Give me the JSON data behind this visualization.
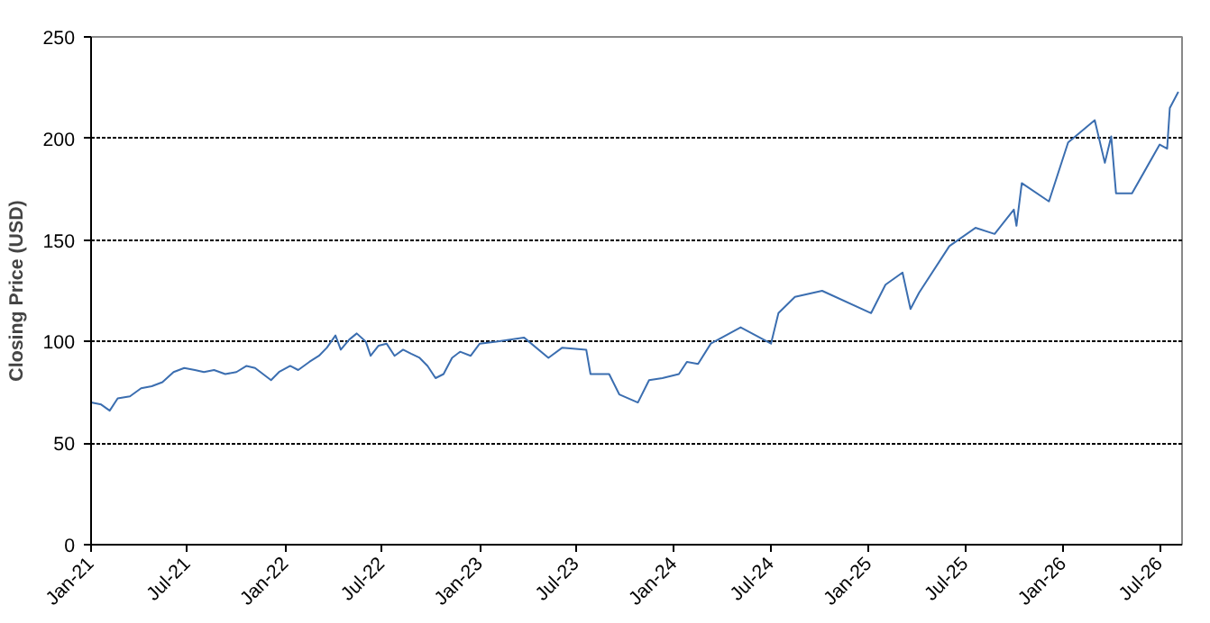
{
  "chart_data": {
    "type": "line",
    "ylabel": "Closing Price (USD)",
    "x": [
      "2021-01-01",
      "2021-01-20",
      "2021-02-05",
      "2021-02-20",
      "2021-03-15",
      "2021-04-05",
      "2021-04-25",
      "2021-05-15",
      "2021-06-05",
      "2021-06-25",
      "2021-07-15",
      "2021-08-01",
      "2021-08-20",
      "2021-09-10",
      "2021-10-01",
      "2021-10-20",
      "2021-11-05",
      "2021-11-25",
      "2021-12-05",
      "2021-12-20",
      "2022-01-10",
      "2022-01-25",
      "2022-02-15",
      "2022-03-05",
      "2022-03-20",
      "2022-04-05",
      "2022-04-15",
      "2022-05-01",
      "2022-05-15",
      "2022-06-01",
      "2022-06-10",
      "2022-06-25",
      "2022-07-10",
      "2022-07-25",
      "2022-08-10",
      "2022-08-25",
      "2022-09-10",
      "2022-09-25",
      "2022-10-10",
      "2022-10-25",
      "2022-11-10",
      "2022-11-25",
      "2022-12-15",
      "2023-01-01",
      "2023-02-01",
      "2023-03-25",
      "2023-05-10",
      "2023-06-05",
      "2023-07-20",
      "2023-07-28",
      "2023-09-01",
      "2023-09-20",
      "2023-10-25",
      "2023-11-15",
      "2023-12-10",
      "2024-01-10",
      "2024-01-25",
      "2024-02-15",
      "2024-03-10",
      "2024-05-05",
      "2024-07-01",
      "2024-07-15",
      "2024-08-15",
      "2024-10-05",
      "2025-01-05",
      "2025-02-01",
      "2025-03-05",
      "2025-03-20",
      "2025-04-05",
      "2025-06-01",
      "2025-07-20",
      "2025-08-25",
      "2025-09-30",
      "2025-10-05",
      "2025-10-15",
      "2025-12-05",
      "2026-01-10",
      "2026-03-01",
      "2026-03-20",
      "2026-04-01",
      "2026-04-10",
      "2026-05-10",
      "2026-07-01",
      "2026-07-15",
      "2026-07-20",
      "2026-08-05"
    ],
    "values": [
      70,
      69,
      66,
      72,
      73,
      77,
      78,
      80,
      85,
      87,
      86,
      85,
      86,
      84,
      85,
      88,
      87,
      83,
      81,
      85,
      88,
      86,
      90,
      93,
      97,
      103,
      96,
      101,
      104,
      100,
      93,
      98,
      99,
      93,
      96,
      94,
      92,
      88,
      82,
      84,
      92,
      95,
      93,
      99,
      100,
      102,
      92,
      97,
      96,
      84,
      84,
      74,
      70,
      81,
      82,
      84,
      90,
      89,
      99,
      107,
      99,
      114,
      122,
      125,
      114,
      128,
      134,
      116,
      124,
      147,
      156,
      153,
      165,
      157,
      178,
      169,
      198,
      209,
      188,
      201,
      173,
      173,
      197,
      195,
      215,
      223
    ],
    "color": "#3b6eb0",
    "xlim": [
      "2021-01-01",
      "2026-08-12"
    ],
    "xticks": [
      {
        "value": "2021-01-01",
        "label": "Jan-21"
      },
      {
        "value": "2021-07-01",
        "label": "Jul-21"
      },
      {
        "value": "2022-01-01",
        "label": "Jan-22"
      },
      {
        "value": "2022-07-01",
        "label": "Jul-22"
      },
      {
        "value": "2023-01-01",
        "label": "Jan-23"
      },
      {
        "value": "2023-07-01",
        "label": "Jul-23"
      },
      {
        "value": "2024-01-01",
        "label": "Jan-24"
      },
      {
        "value": "2024-07-01",
        "label": "Jul-24"
      },
      {
        "value": "2025-01-01",
        "label": "Jan-25"
      },
      {
        "value": "2025-07-01",
        "label": "Jul-25"
      },
      {
        "value": "2026-01-01",
        "label": "Jan-26"
      },
      {
        "value": "2026-07-01",
        "label": "Jul-26"
      }
    ],
    "ylim": [
      0,
      250
    ],
    "yticks": [
      0,
      50,
      100,
      150,
      200,
      250
    ],
    "grid": "y",
    "line_style": "solid"
  }
}
